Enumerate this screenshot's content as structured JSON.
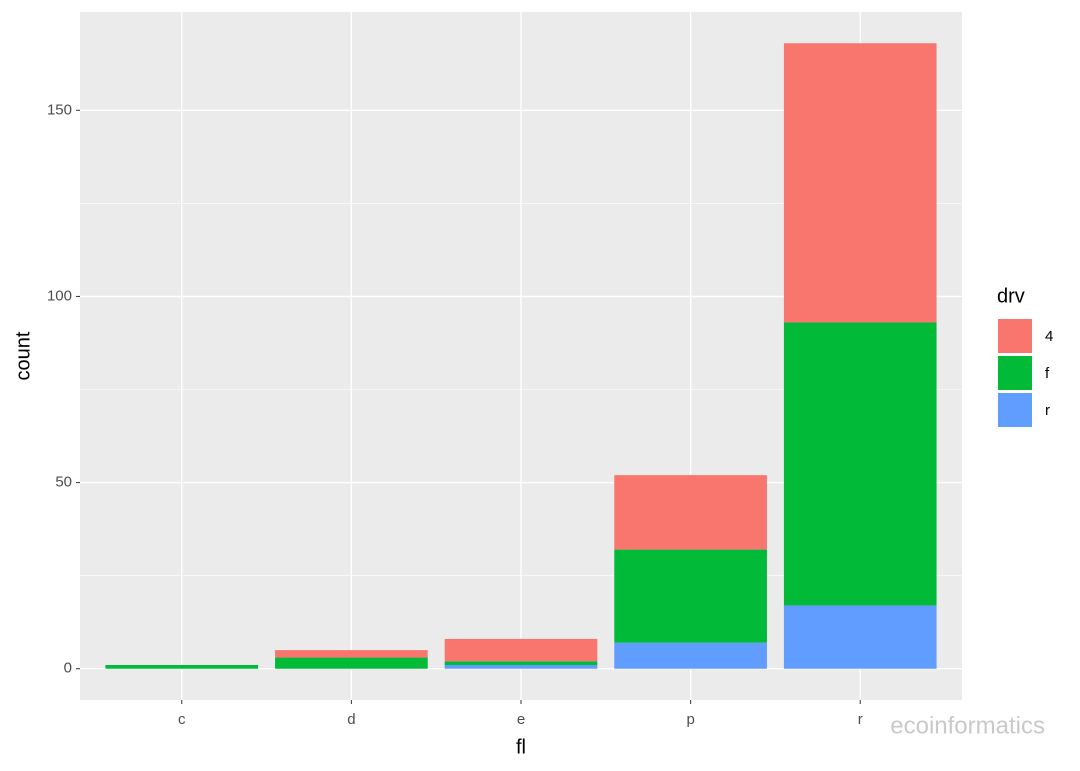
{
  "chart_data": {
    "type": "stacked_bar",
    "x_label": "fl",
    "y_label": "count",
    "categories": [
      "c",
      "d",
      "e",
      "p",
      "r"
    ],
    "series": [
      {
        "name": "4",
        "color": "#F8766D",
        "values": [
          0,
          2,
          6,
          20,
          75
        ]
      },
      {
        "name": "f",
        "color": "#00BA38",
        "values": [
          1,
          3,
          1,
          25,
          76
        ]
      },
      {
        "name": "r",
        "color": "#619CFF",
        "values": [
          0,
          0,
          1,
          7,
          17
        ]
      }
    ],
    "stack_order": "last_series_at_bottom",
    "ylim": [
      -8.4,
      176.4
    ],
    "yticks": [
      0,
      50,
      100,
      150
    ],
    "grid": true,
    "legend_title": "drv",
    "legend_position": "right",
    "watermark": "ecoinformatics"
  }
}
